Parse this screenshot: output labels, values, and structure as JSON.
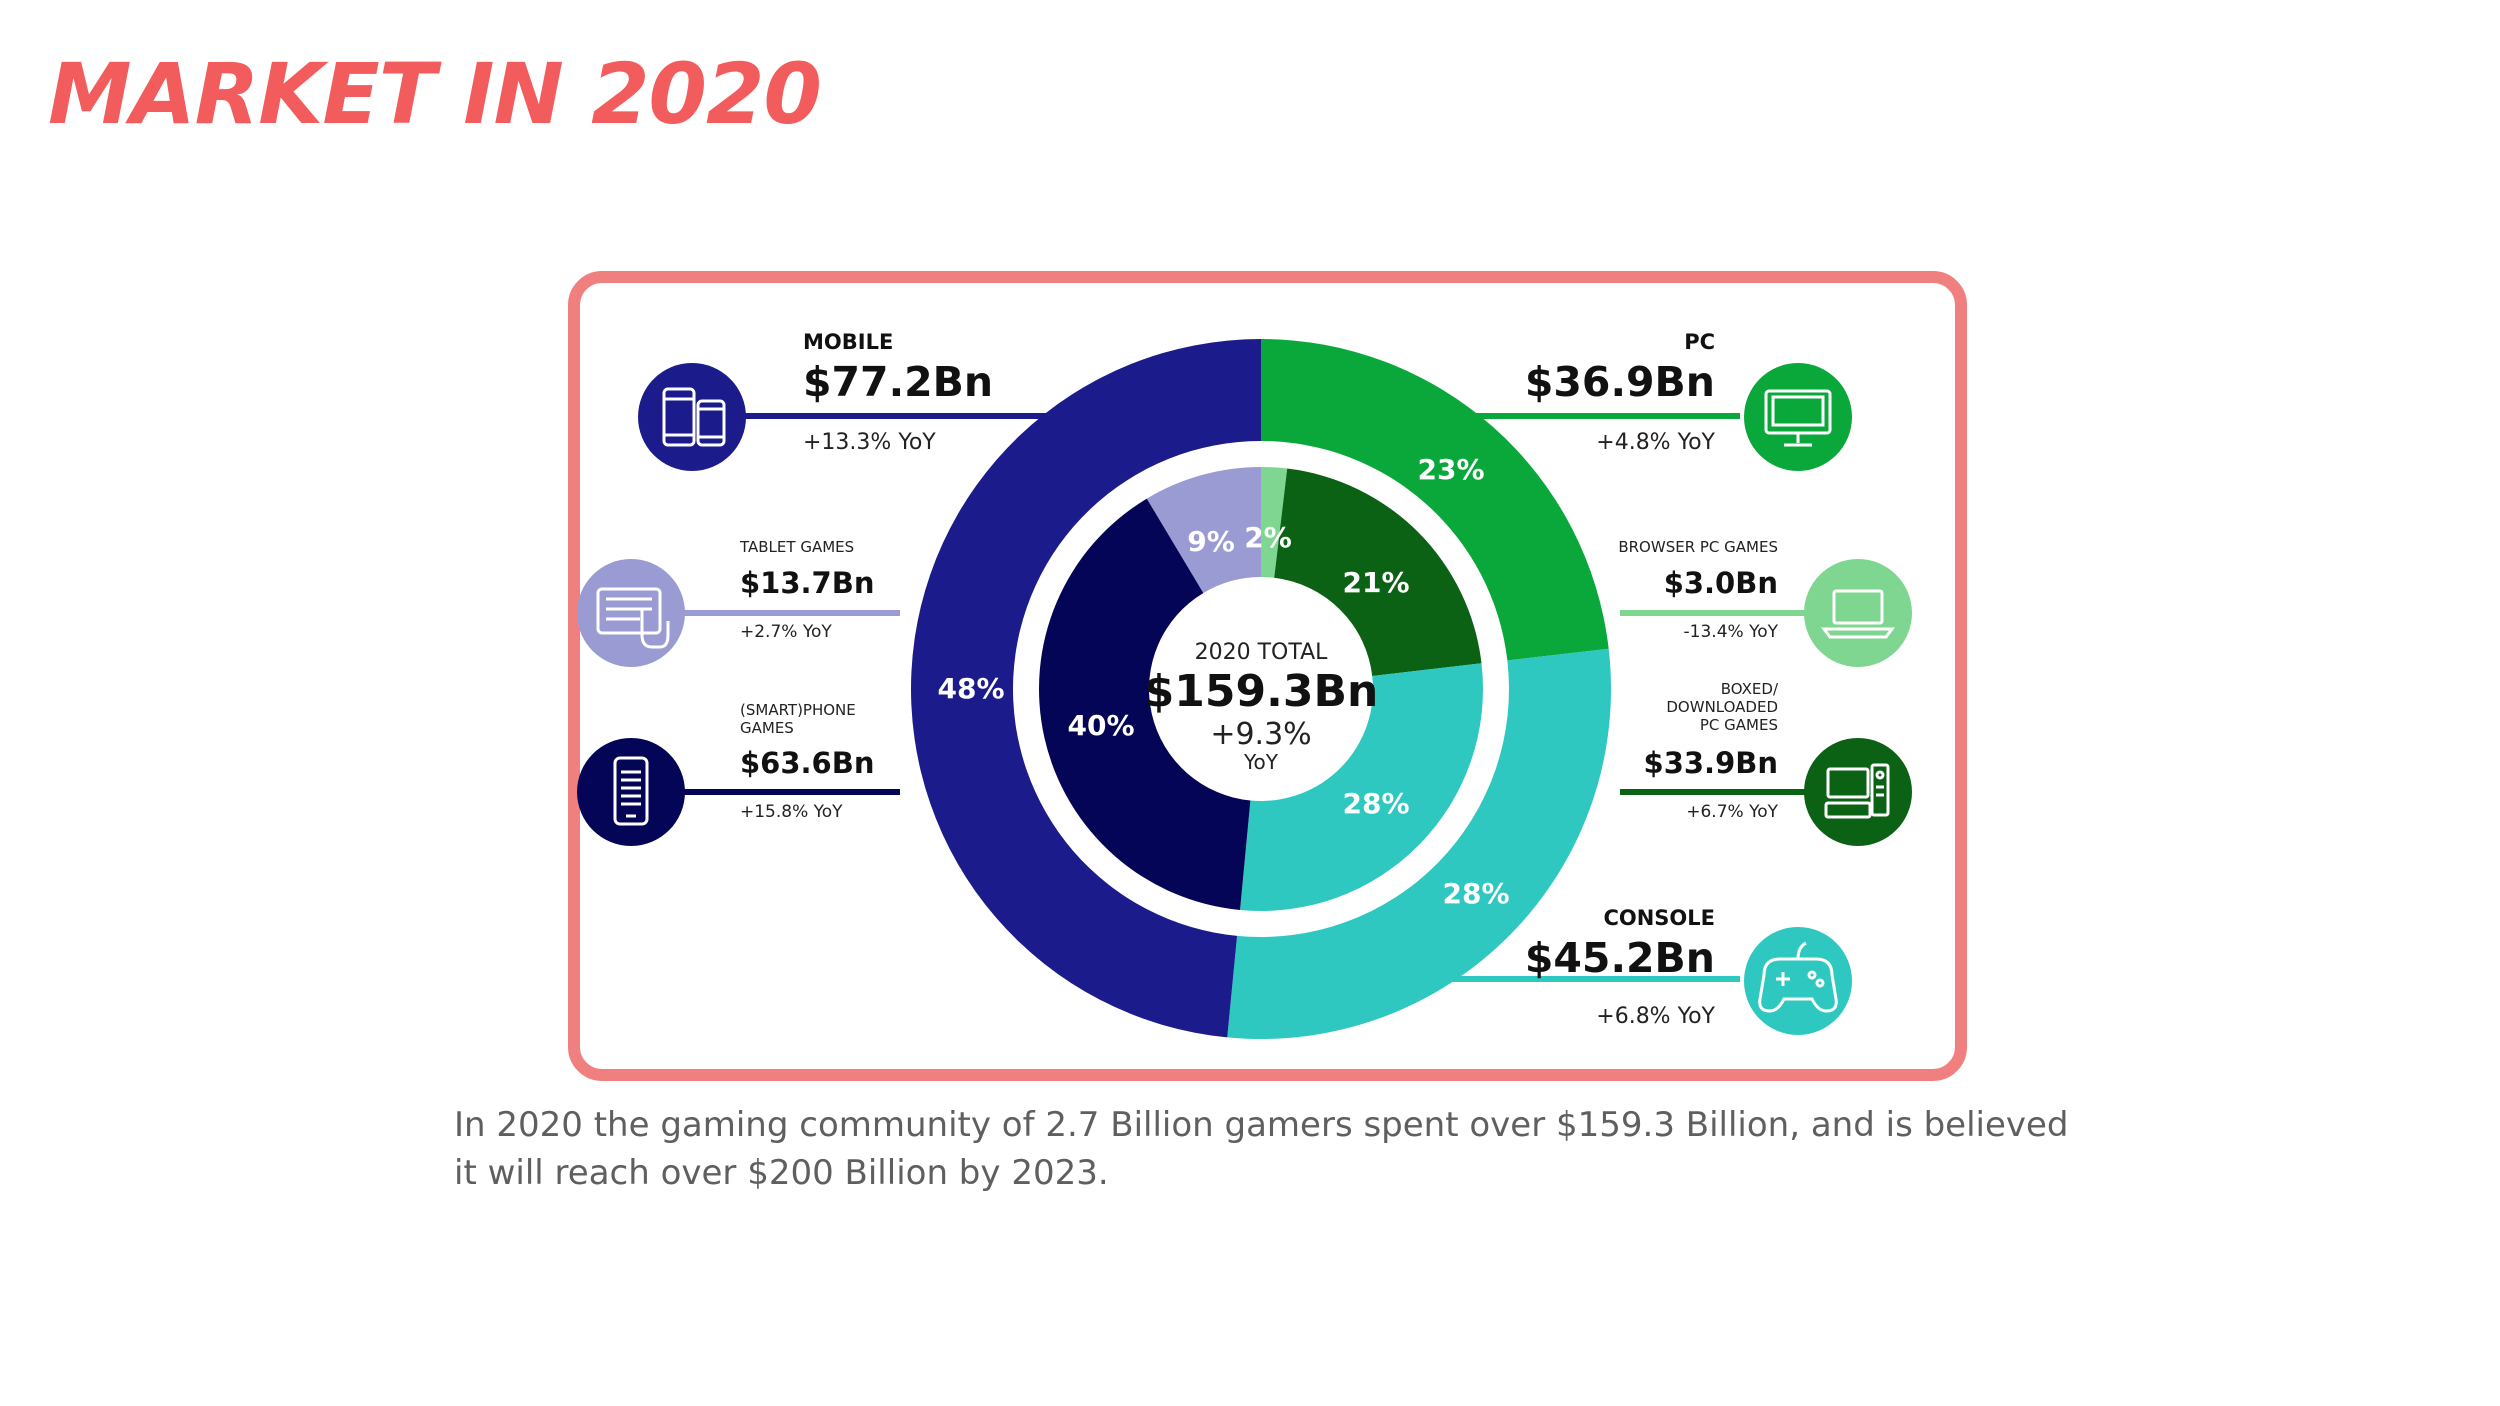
{
  "title": "MARKET IN 2020",
  "caption": "In 2020 the gaming community of 2.7 Billion gamers spent over $159.3 Billion, and is believed it will reach over $200 Billion by 2023.",
  "chart_data": {
    "type": "pie",
    "title": "2020 TOTAL",
    "total": {
      "label": "2020 TOTAL",
      "value": "$159.3Bn",
      "yoy": "+9.3%",
      "yoy_unit": "YoY"
    },
    "outer_ring": [
      {
        "name": "MOBILE",
        "value_label": "$77.2Bn",
        "value": 77.2,
        "yoy": "+13.3% YoY",
        "percent": 48,
        "percent_label": "48%",
        "color": "#1b1b8c"
      },
      {
        "name": "PC",
        "value_label": "$36.9Bn",
        "value": 36.9,
        "yoy": "+4.8% YoY",
        "percent": 23,
        "percent_label": "23%",
        "color": "#0aa83b"
      },
      {
        "name": "CONSOLE",
        "value_label": "$45.2Bn",
        "value": 45.2,
        "yoy": "+6.8% YoY",
        "percent": 28,
        "percent_label": "28%",
        "color": "#2ec8c0"
      }
    ],
    "inner_ring": [
      {
        "name": "TABLET GAMES",
        "value_label": "$13.7Bn",
        "value": 13.7,
        "yoy": "+2.7% YoY",
        "percent": 9,
        "percent_label": "9%",
        "color": "#9b9bd4"
      },
      {
        "name": "(SMART)PHONE GAMES",
        "name_lines": [
          "(SMART)PHONE",
          "GAMES"
        ],
        "value_label": "$63.6Bn",
        "value": 63.6,
        "yoy": "+15.8% YoY",
        "percent": 40,
        "percent_label": "40%",
        "color": "#050557"
      },
      {
        "name": "BROWSER PC GAMES",
        "value_label": "$3.0Bn",
        "value": 3.0,
        "yoy": "-13.4% YoY",
        "percent": 2,
        "percent_label": "2%",
        "color": "#7fd690"
      },
      {
        "name": "BOXED/ DOWNLOADED PC GAMES",
        "name_lines": [
          "BOXED/",
          "DOWNLOADED",
          "PC GAMES"
        ],
        "value_label": "$33.9Bn",
        "value": 33.9,
        "yoy": "+6.7% YoY",
        "percent": 21,
        "percent_label": "21%",
        "color": "#0b6114"
      },
      {
        "name": "CONSOLE",
        "value_label": "$45.2Bn",
        "value": 45.2,
        "percent": 28,
        "percent_label": "28%",
        "color": "#2ec8c0"
      }
    ]
  },
  "icons": {
    "mobile": "mobile-devices-icon",
    "pc": "monitor-icon",
    "tablet": "tablet-touch-icon",
    "browser": "laptop-icon",
    "phone": "smartphone-icon",
    "boxed": "desktop-computer-icon",
    "console": "gamepad-icon"
  },
  "colors": {
    "title": "#f25c5c",
    "frame": "#f08080",
    "caption": "#5f5f5f"
  }
}
